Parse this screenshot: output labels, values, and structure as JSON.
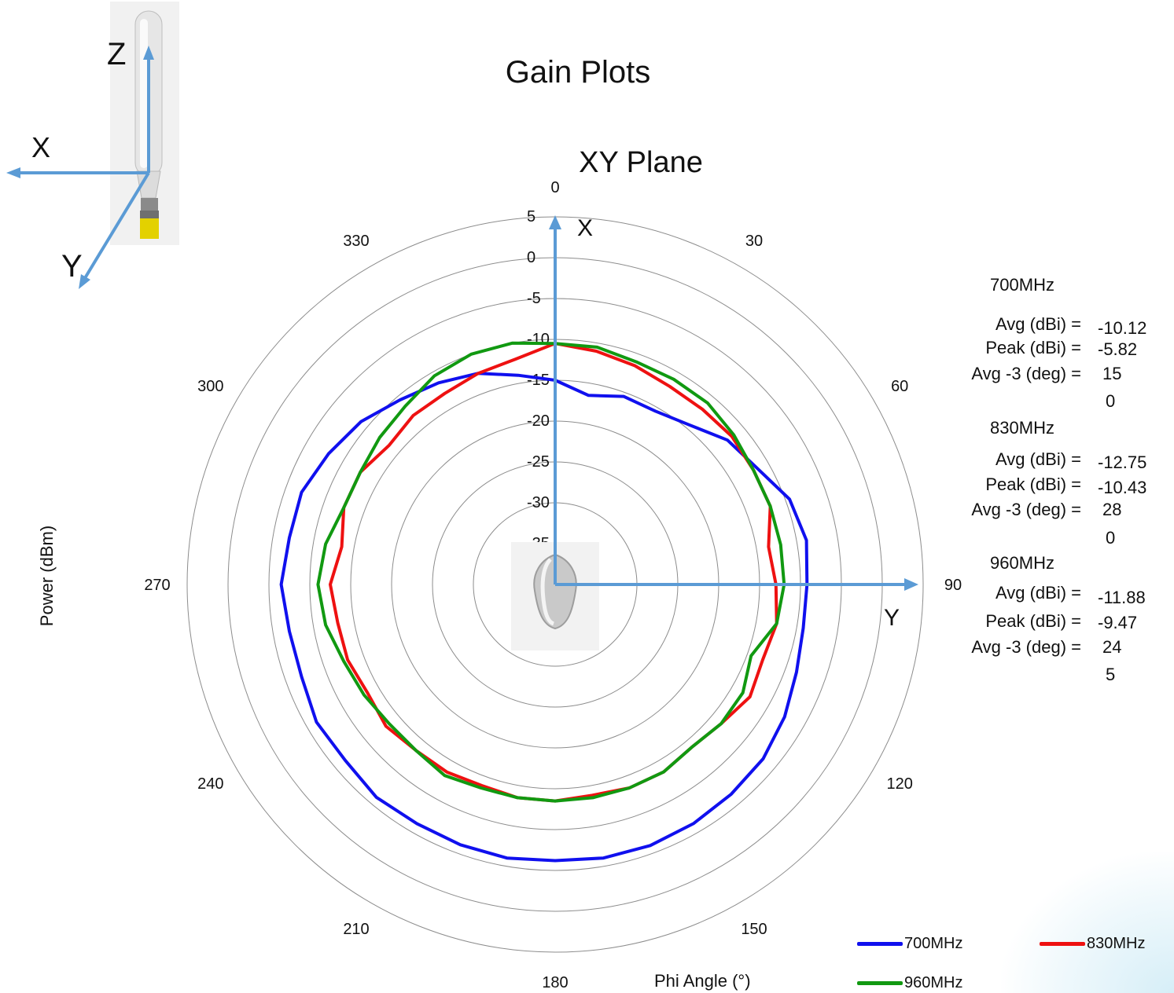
{
  "title": "Gain Plots",
  "orientation_diagram": {
    "axis_labels": [
      "Z",
      "X",
      "Y"
    ]
  },
  "overlay_axes": {
    "top_label": "X",
    "right_label": "Y"
  },
  "stats": [
    {
      "band": "700MHz",
      "avg_label": "Avg (dBi) =",
      "avg": "-10.12",
      "peak_label": "Peak (dBi) =",
      "peak": "-5.82",
      "beam_label": "Avg -3 (deg) =",
      "beam_line1": "15",
      "beam_line2": "0"
    },
    {
      "band": "830MHz",
      "avg_label": "Avg (dBi) =",
      "avg": "-12.75",
      "peak_label": "Peak (dBi) =",
      "peak": "-10.43",
      "beam_label": "Avg -3 (deg) =",
      "beam_line1": "28",
      "beam_line2": "0"
    },
    {
      "band": "960MHz",
      "avg_label": "Avg (dBi) =",
      "avg": "-11.88",
      "peak_label": "Peak (dBi) =",
      "peak": "-9.47",
      "beam_label": "Avg -3 (deg) =",
      "beam_line1": "24",
      "beam_line2": "5"
    }
  ],
  "chart_data": {
    "type": "polar-line",
    "title": "XY Plane",
    "xlabel": "Phi  Angle (°)",
    "ylabel": "Power (dBm)",
    "rlim": [
      -40,
      5
    ],
    "r_ticks": [
      "5",
      "0",
      "-5",
      "-10",
      "-15",
      "-20",
      "-25",
      "-30",
      "-35",
      "-40"
    ],
    "angle_ticks": [
      "0",
      "30",
      "60",
      "90",
      "120",
      "150",
      "180",
      "210",
      "240",
      "270",
      "300",
      "330"
    ],
    "theta": [
      0,
      10,
      20,
      30,
      40,
      50,
      60,
      70,
      80,
      90,
      100,
      110,
      120,
      130,
      140,
      150,
      160,
      170,
      180,
      190,
      200,
      210,
      220,
      230,
      240,
      250,
      260,
      270,
      280,
      290,
      300,
      310,
      320,
      330,
      340,
      350
    ],
    "series": [
      {
        "name": "700MHz",
        "color": "#1010ee",
        "values": [
          -15,
          -16.5,
          -15.5,
          -15.5,
          -14.5,
          -12.5,
          -11.5,
          -9.5,
          -8.8,
          -9.2,
          -9.2,
          -8.6,
          -7.6,
          -6.8,
          -6.5,
          -6.2,
          -6.0,
          -6.0,
          -6.2,
          -6.0,
          -6.1,
          -6.2,
          -6.0,
          -6.5,
          -6.3,
          -7.0,
          -7.0,
          -6.5,
          -7.0,
          -7.0,
          -8.0,
          -9.0,
          -10.5,
          -11.5,
          -12.5,
          -14.0
        ]
      },
      {
        "name": "830MHz",
        "color": "#ee1111",
        "values": [
          -10.5,
          -11.0,
          -11.5,
          -12.0,
          -12.0,
          -11.8,
          -12.0,
          -12.0,
          -13.5,
          -13.0,
          -12.5,
          -13.0,
          -12.5,
          -13.5,
          -14.0,
          -13.5,
          -13.5,
          -13.8,
          -13.5,
          -13.5,
          -13.8,
          -13.5,
          -13.5,
          -13.0,
          -13.5,
          -13.0,
          -13.0,
          -12.5,
          -13.5,
          -12.5,
          -12.5,
          -13.5,
          -13.0,
          -13.0,
          -12.5,
          -12.0
        ]
      },
      {
        "name": "960MHz",
        "color": "#119911",
        "values": [
          -10.5,
          -10.5,
          -11.0,
          -11.0,
          -11.0,
          -11.5,
          -12.0,
          -12.0,
          -12.0,
          -12.0,
          -12.5,
          -14.5,
          -13.5,
          -13.5,
          -14.0,
          -13.5,
          -13.5,
          -13.5,
          -13.5,
          -13.5,
          -13.5,
          -13.0,
          -13.5,
          -13.5,
          -13.0,
          -12.5,
          -11.5,
          -11.0,
          -11.5,
          -12.5,
          -12.5,
          -12.0,
          -11.5,
          -10.5,
          -10.0,
          -10.0
        ]
      }
    ]
  }
}
